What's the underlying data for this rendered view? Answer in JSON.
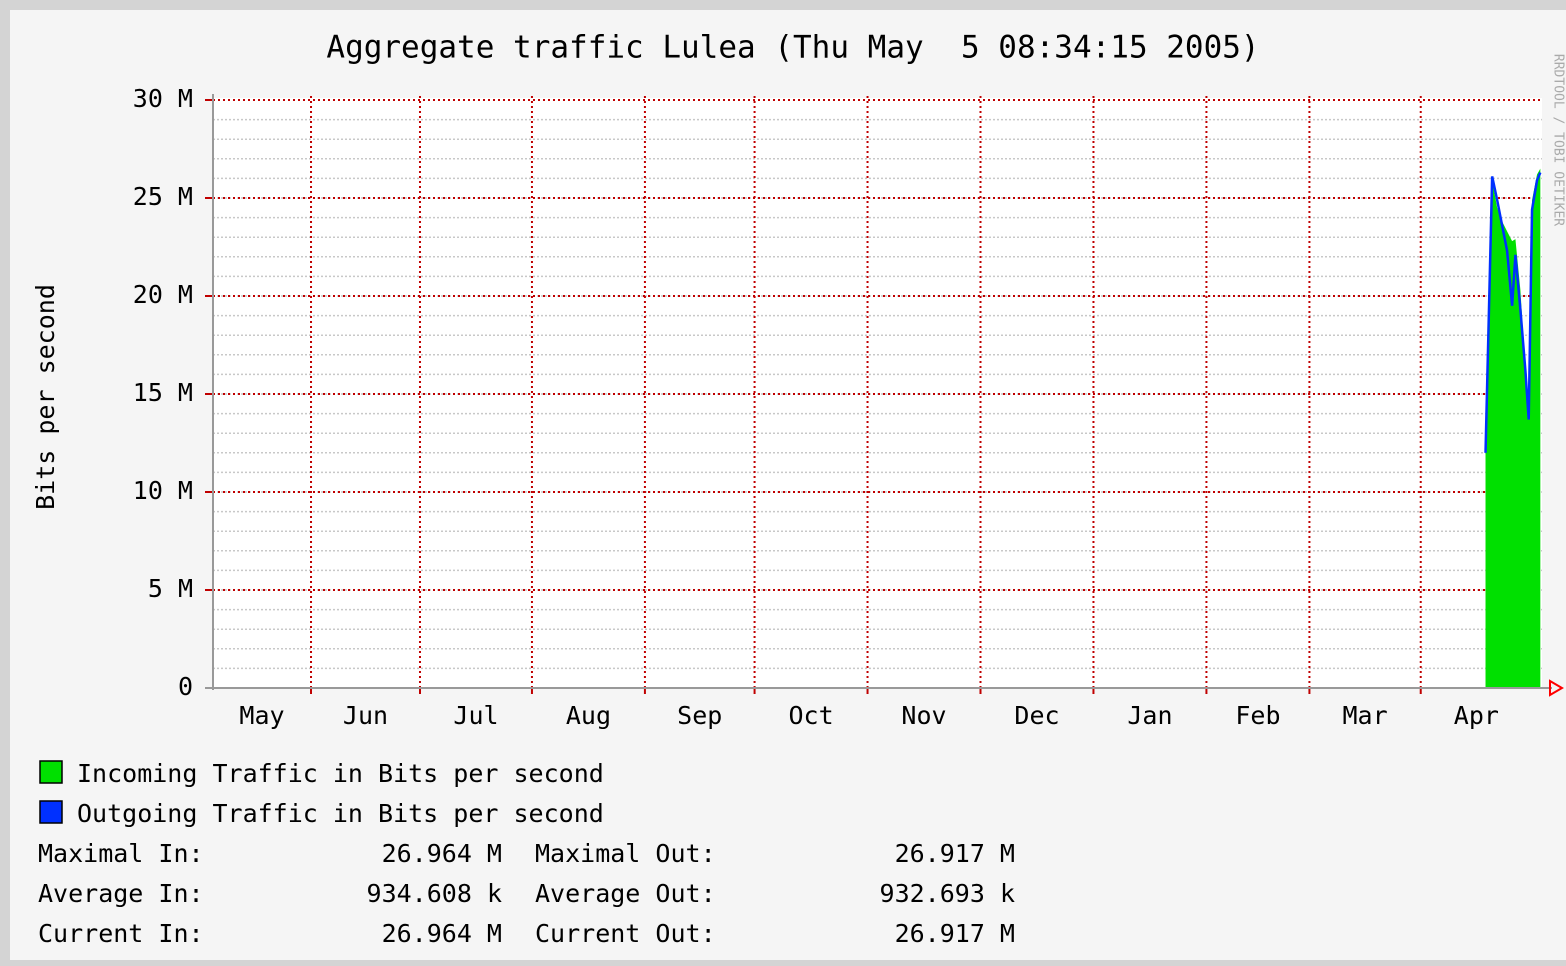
{
  "chart_data": {
    "type": "area",
    "title": "Aggregate traffic Lulea (Thu May  5 08:34:15 2005)",
    "ylabel": "Bits per second",
    "watermark": "RRDTOOL / TOBI OETIKER",
    "ylim": [
      0,
      30000000
    ],
    "yticks": [
      0,
      {
        "value": 5000000,
        "label": "5 M"
      },
      {
        "value": 10000000,
        "label": "10 M"
      },
      {
        "value": 15000000,
        "label": "15 M"
      },
      {
        "value": 20000000,
        "label": "20 M"
      },
      {
        "value": 25000000,
        "label": "25 M"
      },
      {
        "value": 30000000,
        "label": "30 M"
      }
    ],
    "yminor": 1000000,
    "xlim": [
      0,
      400
    ],
    "xticks": [
      {
        "value": -1.5,
        "label": "May"
      },
      {
        "value": 29.5,
        "label": "Jun"
      },
      {
        "value": 62.3,
        "label": "Jul"
      },
      {
        "value": 96,
        "label": "Aug"
      },
      {
        "value": 130,
        "label": "Sep"
      },
      {
        "value": 163,
        "label": "Oct"
      },
      {
        "value": 197,
        "label": "Nov"
      },
      {
        "value": 231,
        "label": "Dec"
      },
      {
        "value": 265,
        "label": "Jan"
      },
      {
        "value": 299,
        "label": "Feb"
      },
      {
        "value": 330,
        "label": "Mar"
      },
      {
        "value": 363.5,
        "label": "Apr"
      }
    ],
    "grid": true,
    "x": [
      383,
      385,
      386.5,
      388,
      389.5,
      391,
      392,
      393.5,
      395,
      396,
      397,
      398.5,
      399.5
    ],
    "series": [
      {
        "name": "Incoming Traffic in Bits per second",
        "color": "#00e000",
        "type": "area",
        "values": [
          12400000,
          25900000,
          24500000,
          23800000,
          23300000,
          22800000,
          22900000,
          20300000,
          16200000,
          13700000,
          24900000,
          26200000,
          26500000
        ]
      },
      {
        "name": "Outgoing Traffic in Bits per second",
        "color": "#0030ff",
        "type": "line",
        "values": [
          12000000,
          26100000,
          24900000,
          23600000,
          22300000,
          19500000,
          22100000,
          19300000,
          16200000,
          13700000,
          24400000,
          25900000,
          26300000
        ]
      }
    ],
    "stats": [
      [
        "Maximal In:",
        "26.964 M",
        "Maximal Out:",
        "26.917 M"
      ],
      [
        "Average In:",
        "934.608 k",
        "Average Out:",
        "932.693 k"
      ],
      [
        "Current In:",
        "26.964 M",
        "Current Out:",
        "26.917 M"
      ]
    ]
  }
}
